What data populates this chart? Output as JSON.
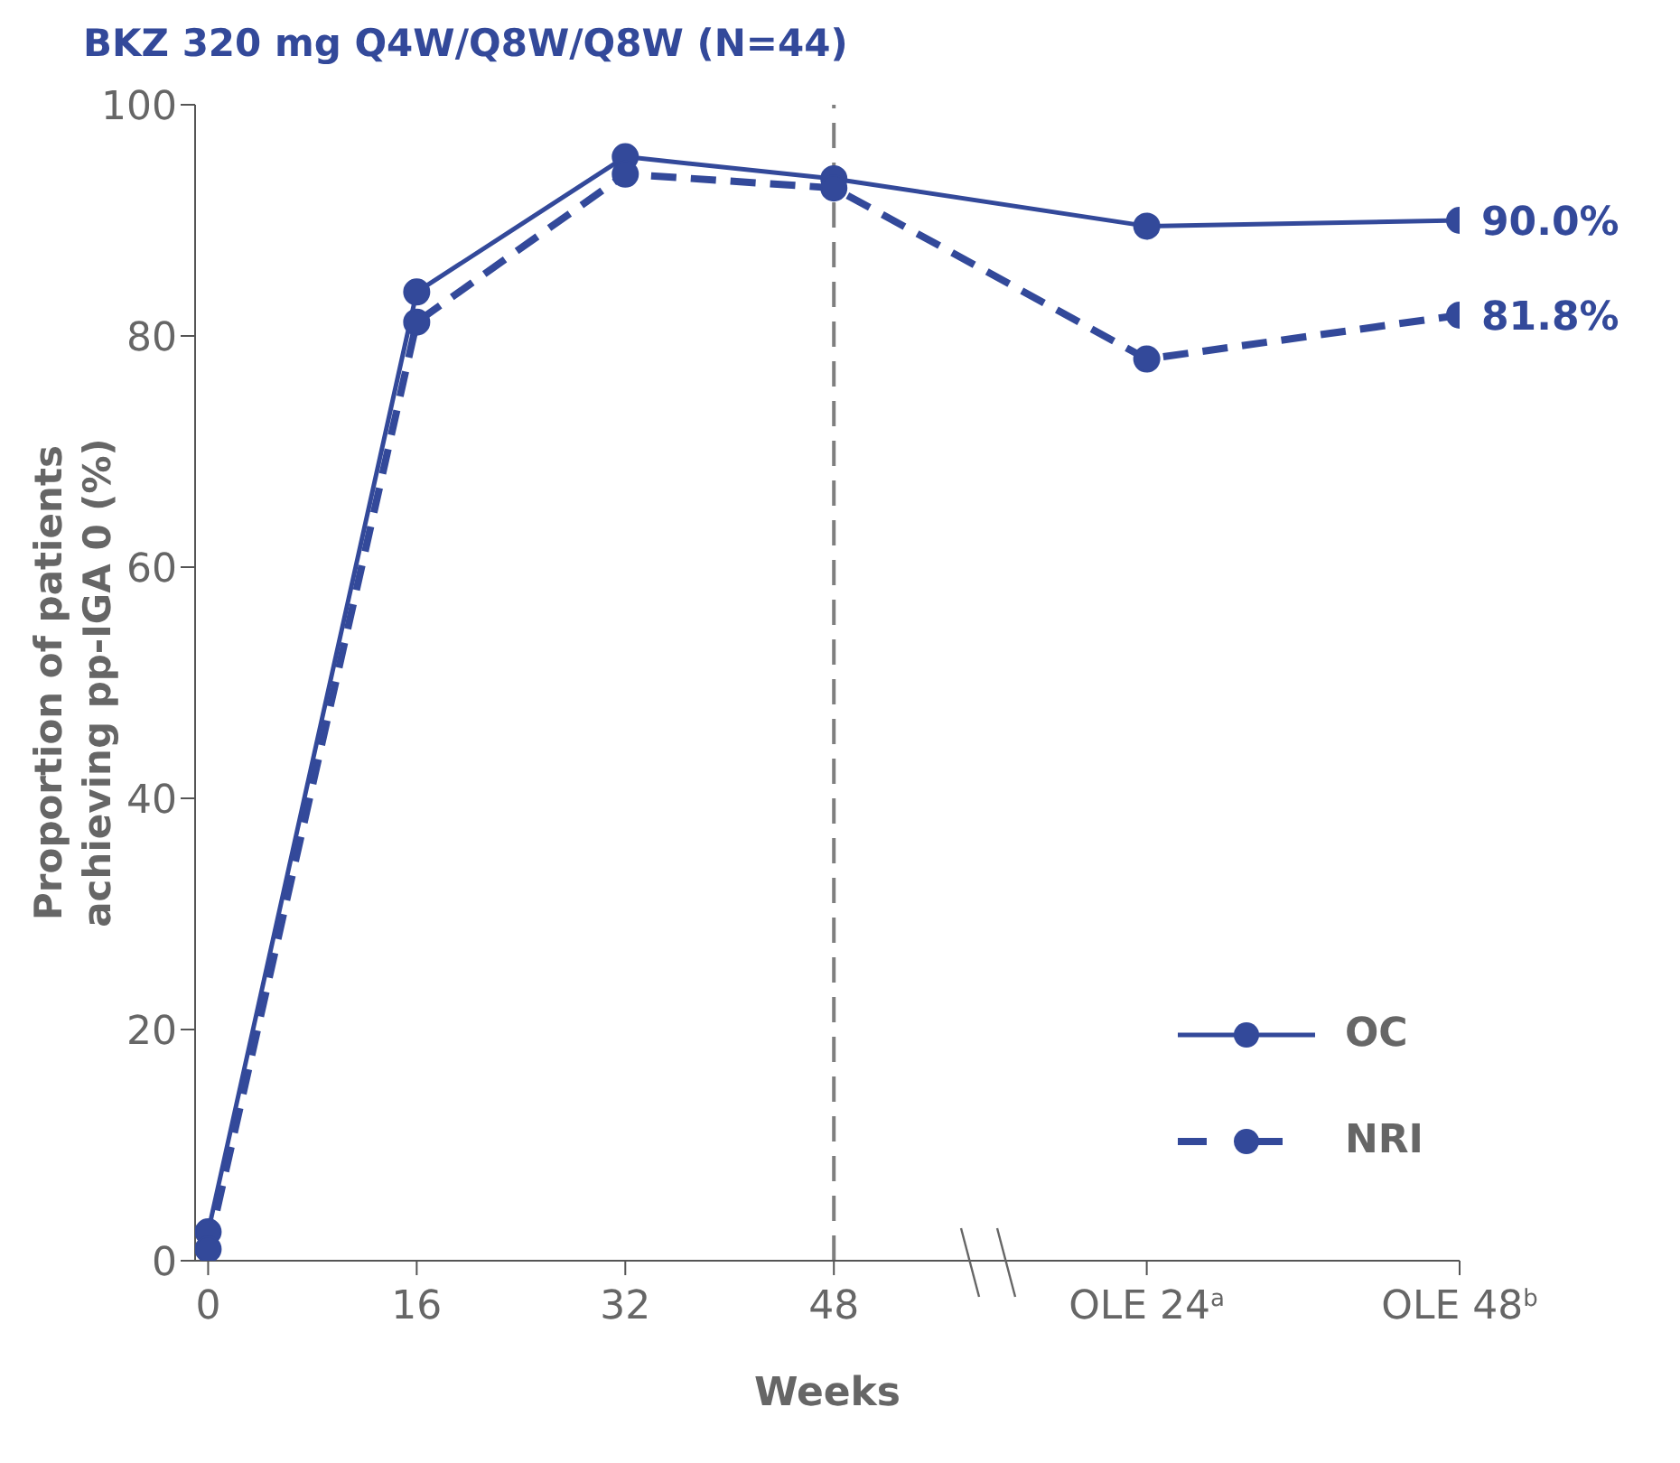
{
  "chart_data": {
    "type": "line",
    "title": "BKZ 320 mg Q4W/Q8W/Q8W (N=44)",
    "xlabel": "Weeks",
    "ylabel": "Proportion of patients achieving pp-IGA 0 (%)",
    "x": [
      0,
      16,
      32,
      48,
      72,
      96
    ],
    "series": [
      {
        "name": "OC",
        "color": "#33499a",
        "line_style": "solid",
        "values": [
          2.5,
          83.8,
          95.5,
          93.6,
          89.5,
          90.0
        ],
        "value_labels": [
          null,
          null,
          null,
          null,
          null,
          "90.0%"
        ]
      },
      {
        "name": "NRI",
        "color": "#33499a",
        "line_style": "dashed",
        "values": [
          1.0,
          81.2,
          94.0,
          92.8,
          78.0,
          81.8
        ],
        "value_labels": [
          null,
          null,
          null,
          null,
          null,
          "81.8%"
        ]
      }
    ],
    "xlim": [
      -1,
      96
    ],
    "xticks": [
      0,
      16,
      32,
      48,
      {
        "value": 72,
        "label": "OLE 24$^{a}$"
      },
      {
        "value": 96,
        "label": "OLE 48$^{b}$"
      }
    ],
    "ylim": [
      0,
      100
    ],
    "yticks": [
      0,
      20,
      40,
      60,
      80,
      100
    ],
    "ref_lines": [
      {
        "axis": "x",
        "value": 48,
        "color": "#7f7f7f",
        "line_style": "dashed"
      }
    ],
    "grid": false,
    "legend": "bottom right",
    "marker": "circle"
  }
}
